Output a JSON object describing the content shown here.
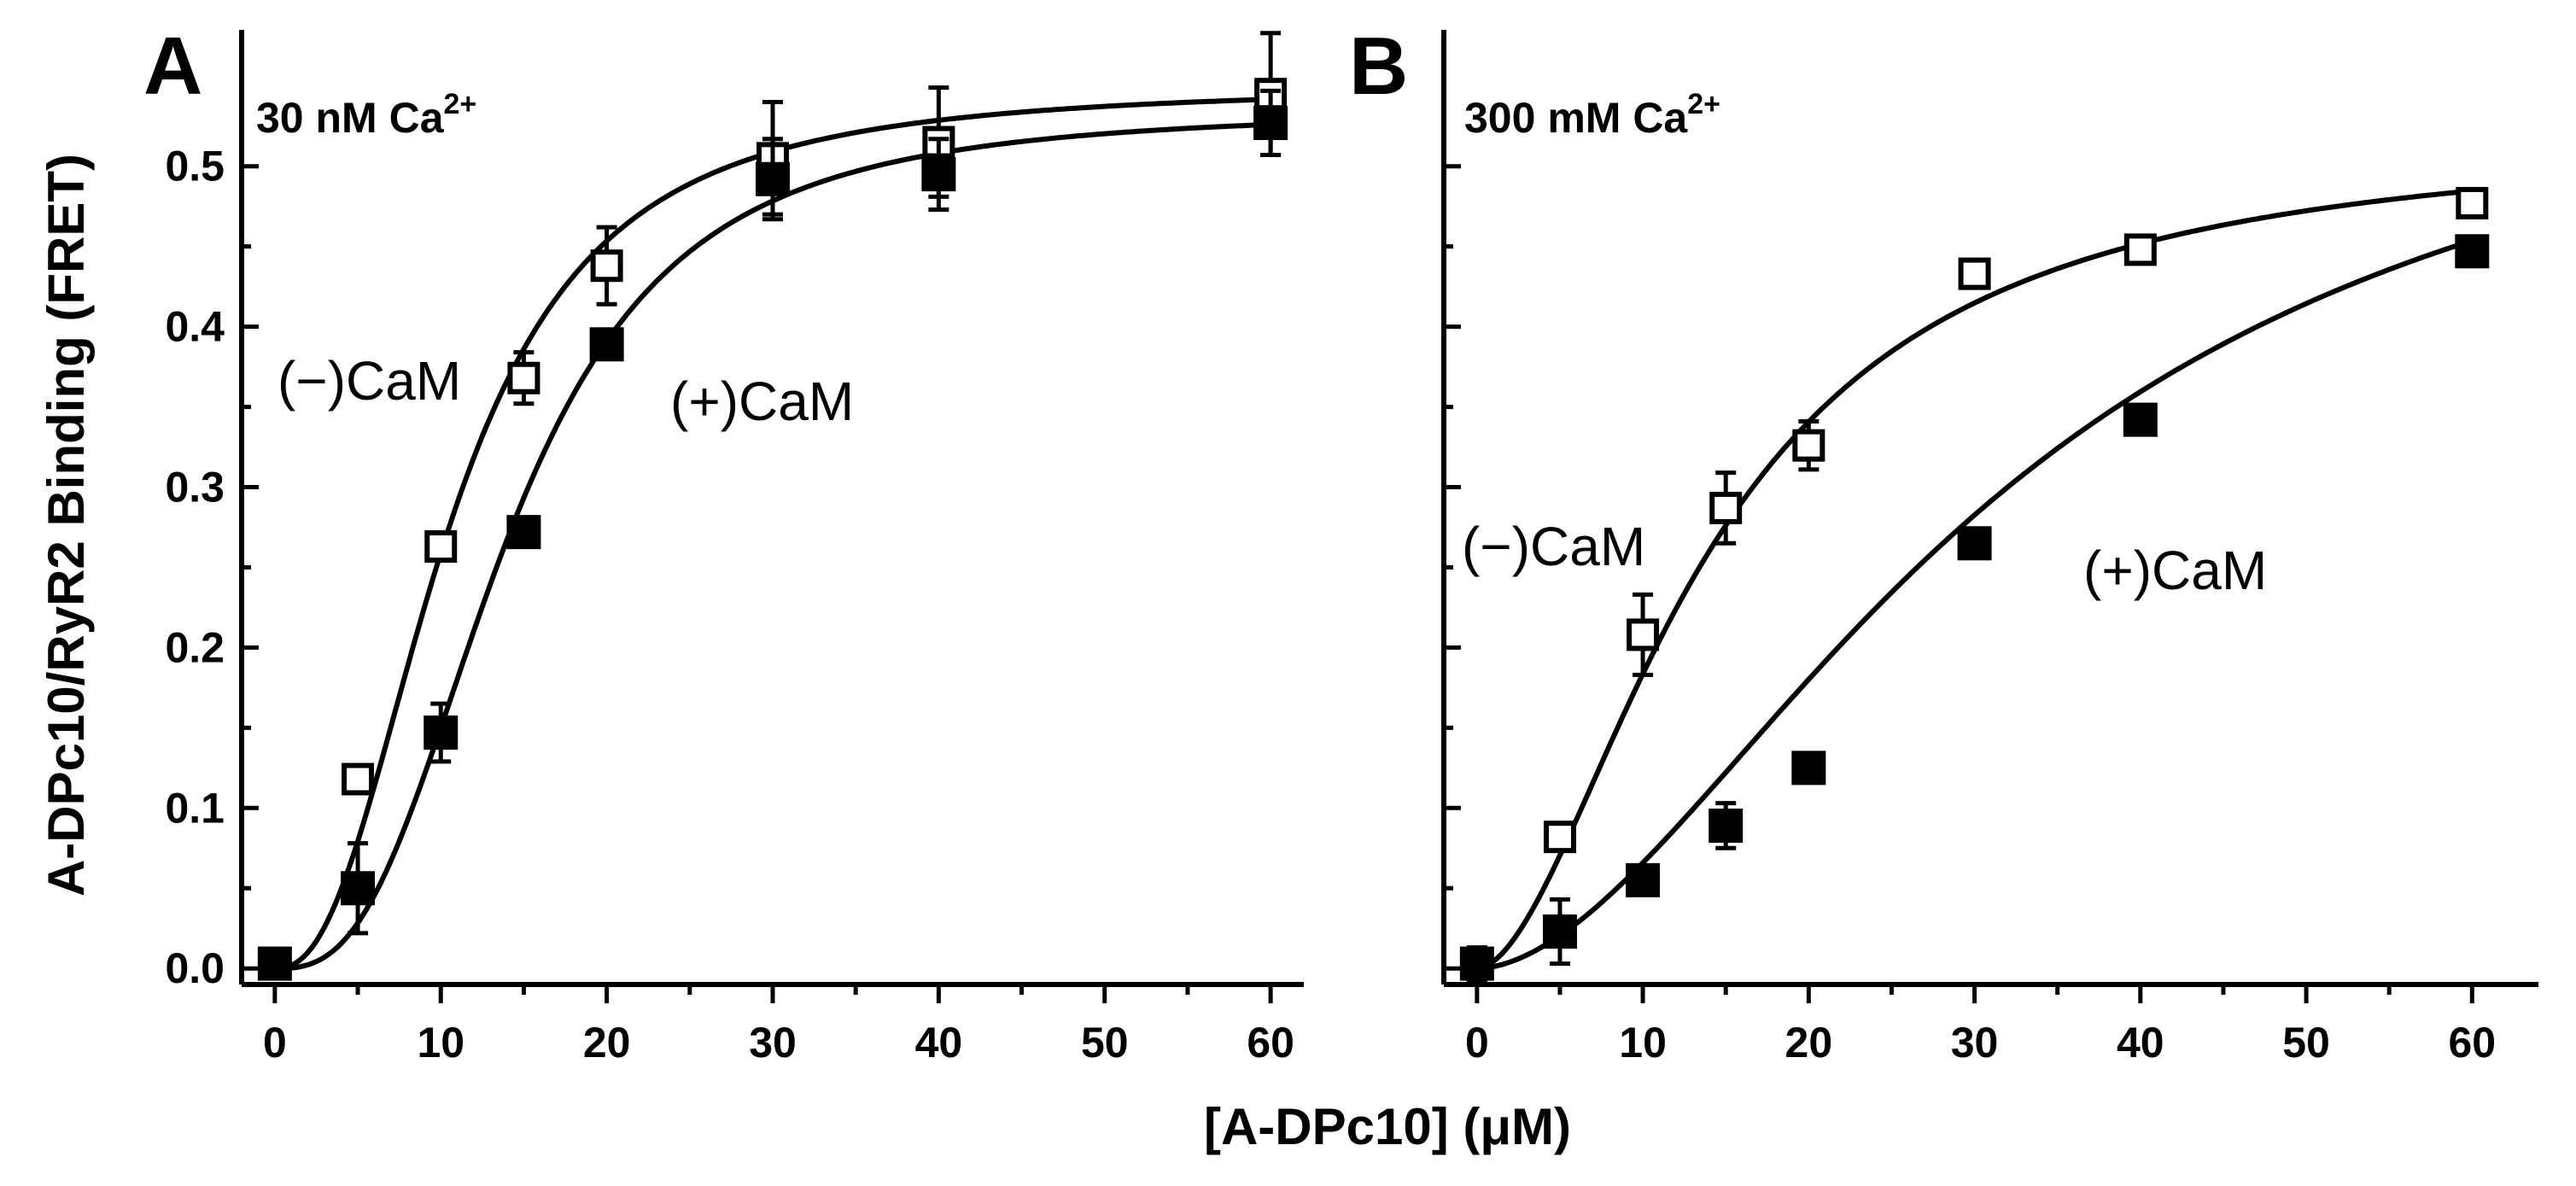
{
  "figure": {
    "ylabel": "A-DPc10/RyR2 Binding (FRET)",
    "xlabel": "[A-DPc10] (μM)"
  },
  "chart_data": [
    {
      "type": "scatter",
      "panel": "A",
      "condition": "30 nM Ca",
      "condition_sup": "2+",
      "xlim": [
        -2,
        62
      ],
      "ylim": [
        -0.01,
        0.585
      ],
      "xticks": [
        0,
        10,
        20,
        30,
        40,
        50,
        60
      ],
      "yticks": [
        0.0,
        0.1,
        0.2,
        0.3,
        0.4,
        0.5
      ],
      "ytick_labels": [
        "0.0",
        "0.1",
        "0.2",
        "0.3",
        "0.4",
        "0.5"
      ],
      "series": [
        {
          "name": "(−)CaM",
          "marker": "open-square",
          "x": [
            0,
            5,
            10,
            15,
            20,
            30,
            40,
            60
          ],
          "y": [
            0.003,
            0.118,
            0.263,
            0.368,
            0.438,
            0.505,
            0.515,
            0.545
          ],
          "err": [
            0.004,
            0.008,
            0.006,
            0.016,
            0.024,
            0.035,
            0.034,
            0.038
          ],
          "fit": {
            "model": "hill",
            "bmax": 0.55,
            "k": 10.5,
            "n": 2.4
          }
        },
        {
          "name": "(+)CaM",
          "marker": "filled-square",
          "x": [
            0,
            5,
            10,
            15,
            20,
            30,
            40,
            60
          ],
          "y": [
            0.003,
            0.05,
            0.147,
            0.272,
            0.389,
            0.492,
            0.495,
            0.527
          ],
          "err": [
            0.004,
            0.028,
            0.018,
            0.008,
            0.008,
            0.025,
            0.022,
            0.02
          ],
          "fit": {
            "model": "hill",
            "bmax": 0.535,
            "k": 14.0,
            "n": 2.8
          }
        }
      ]
    },
    {
      "type": "scatter",
      "panel": "B",
      "condition": "300 mM Ca",
      "condition_sup": "2+",
      "xlim": [
        -2,
        64
      ],
      "ylim": [
        -0.01,
        0.585
      ],
      "xticks": [
        0,
        10,
        20,
        30,
        40,
        50,
        60
      ],
      "yticks": [
        0.0,
        0.1,
        0.2,
        0.3,
        0.4,
        0.5
      ],
      "ytick_labels": [],
      "series": [
        {
          "name": "(−)CaM",
          "marker": "open-square",
          "x": [
            0,
            5,
            10,
            15,
            20,
            30,
            40,
            60
          ],
          "y": [
            0.003,
            0.082,
            0.208,
            0.287,
            0.326,
            0.433,
            0.448,
            0.477
          ],
          "err": [
            0.01,
            0.006,
            0.025,
            0.022,
            0.015,
            0.008,
            0.006,
            0.008
          ],
          "fit": {
            "model": "hill",
            "bmax": 0.52,
            "k": 14.0,
            "n": 1.8
          }
        },
        {
          "name": "(+)CaM",
          "marker": "filled-square",
          "x": [
            0,
            5,
            10,
            15,
            20,
            30,
            40,
            60
          ],
          "y": [
            0.003,
            0.023,
            0.055,
            0.089,
            0.125,
            0.265,
            0.342,
            0.447
          ],
          "err": [
            0.01,
            0.02,
            0.006,
            0.014,
            0.006,
            0.006,
            0.006,
            0.006
          ],
          "fit": {
            "model": "hill",
            "bmax": 0.6,
            "k": 32.0,
            "n": 1.8
          }
        }
      ]
    }
  ]
}
